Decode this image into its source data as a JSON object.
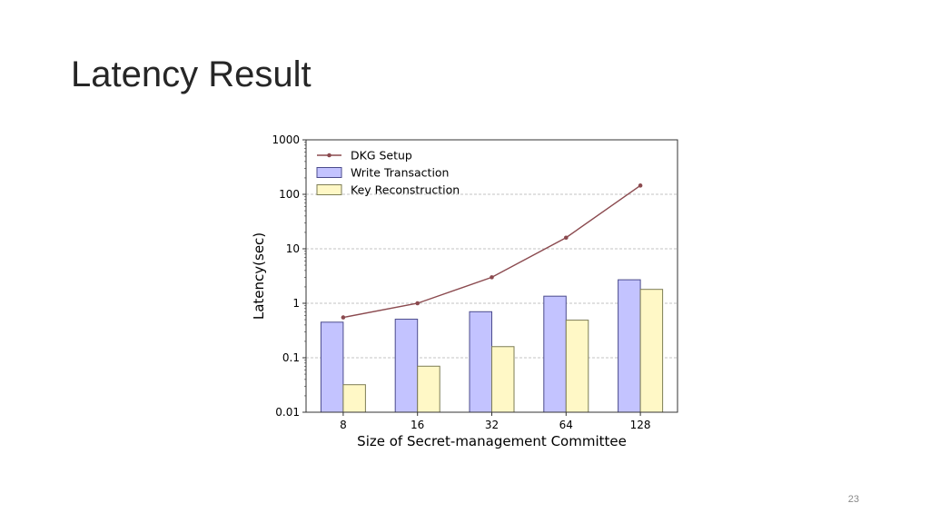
{
  "slide": {
    "title": "Latency Result",
    "page_number": "23"
  },
  "chart_data": {
    "type": "bar",
    "xlabel": "Size of Secret-management Committee",
    "ylabel": "Latency(sec)",
    "categories": [
      "8",
      "16",
      "32",
      "64",
      "128"
    ],
    "y_scale": "log",
    "ylim": [
      0.01,
      1000
    ],
    "y_ticks": [
      "0.01",
      "0.1",
      "1",
      "10",
      "100",
      "1000"
    ],
    "grid": "horizontal dashed",
    "legend_position": "top-left",
    "series": [
      {
        "name": "DKG Setup",
        "kind": "line",
        "values": [
          0.55,
          1.0,
          3.0,
          16,
          145
        ],
        "color": "#8b4a4f"
      },
      {
        "name": "Write Transaction",
        "kind": "bar",
        "values": [
          0.45,
          0.51,
          0.7,
          1.35,
          2.7
        ],
        "color": "#c3c3ff",
        "edge": "#4b4b8c"
      },
      {
        "name": "Key Reconstruction",
        "kind": "bar",
        "values": [
          0.032,
          0.07,
          0.16,
          0.49,
          1.8
        ],
        "color": "#fff8c6",
        "edge": "#7d7d55"
      }
    ]
  }
}
